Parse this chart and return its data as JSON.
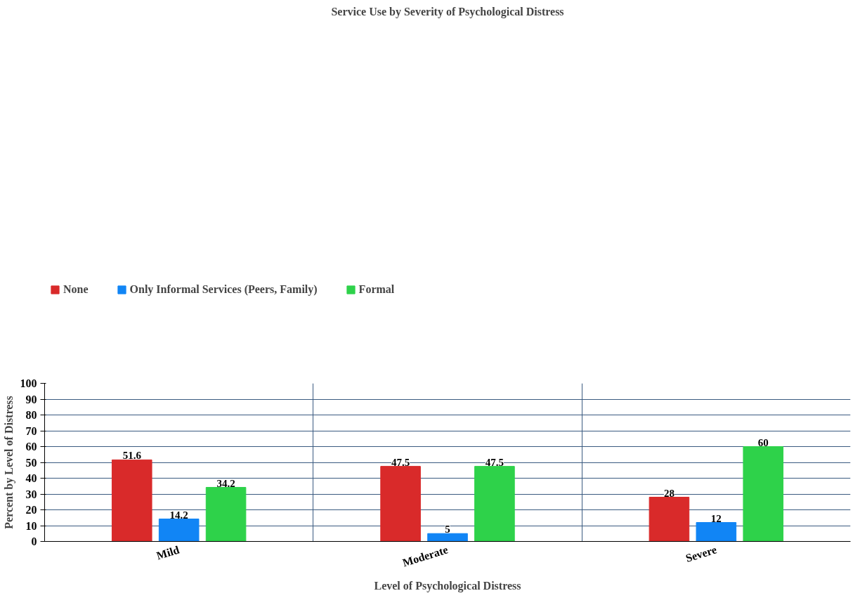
{
  "chart_data": {
    "type": "bar",
    "title": "Service Use by Severity of Psychological Distress",
    "xlabel": "Level of Psychological Distress",
    "ylabel": "Percent by Level of Distress",
    "categories": [
      "Mild",
      "Moderate",
      "Severe"
    ],
    "series": [
      {
        "name": "None",
        "color": "#d92a2a",
        "values": [
          51.6,
          47.5,
          28
        ]
      },
      {
        "name": "Only Informal Services (Peers, Family)",
        "color": "#1185f5",
        "values": [
          14.2,
          5,
          12
        ]
      },
      {
        "name": "Formal",
        "color": "#2ed24a",
        "values": [
          34.2,
          47.5,
          60
        ]
      }
    ],
    "ylim": [
      0,
      100
    ],
    "yticks": [
      0,
      10,
      20,
      30,
      40,
      50,
      60,
      70,
      80,
      90,
      100
    ],
    "grid": true,
    "legend": "top left",
    "data_labels": true
  }
}
